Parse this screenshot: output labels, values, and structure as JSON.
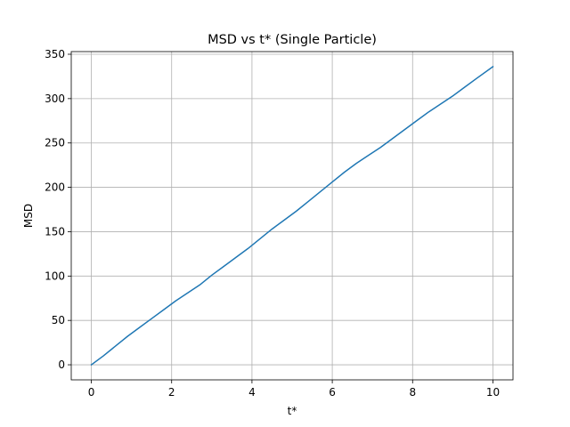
{
  "chart_data": {
    "type": "line",
    "title": "MSD vs t* (Single Particle)",
    "xlabel": "t*",
    "ylabel": "MSD",
    "xlim": [
      -0.5,
      10.5
    ],
    "ylim": [
      -17,
      353
    ],
    "xticks": [
      0,
      2,
      4,
      6,
      8,
      10
    ],
    "yticks": [
      0,
      50,
      100,
      150,
      200,
      250,
      300,
      350
    ],
    "grid": true,
    "colors": {
      "line": "#1f77b4",
      "grid": "#b0b0b0",
      "axis": "#000000"
    },
    "series": [
      {
        "x": [
          0,
          0.3,
          0.6,
          0.9,
          1.2,
          1.5,
          1.8,
          2.1,
          2.4,
          2.7,
          3.0,
          3.3,
          3.6,
          3.9,
          4.2,
          4.5,
          4.8,
          5.1,
          5.4,
          5.7,
          6.0,
          6.3,
          6.6,
          6.9,
          7.2,
          7.5,
          7.8,
          8.1,
          8.4,
          8.7,
          9.0,
          9.3,
          9.6,
          10.0
        ],
        "y": [
          0,
          10,
          21,
          32,
          42,
          52,
          62,
          72,
          81,
          90,
          101,
          111,
          121,
          131,
          142,
          153,
          163,
          173,
          184,
          195,
          206,
          217,
          227,
          236,
          245,
          255,
          265,
          275,
          285,
          294,
          303,
          313,
          323,
          336
        ]
      }
    ]
  }
}
